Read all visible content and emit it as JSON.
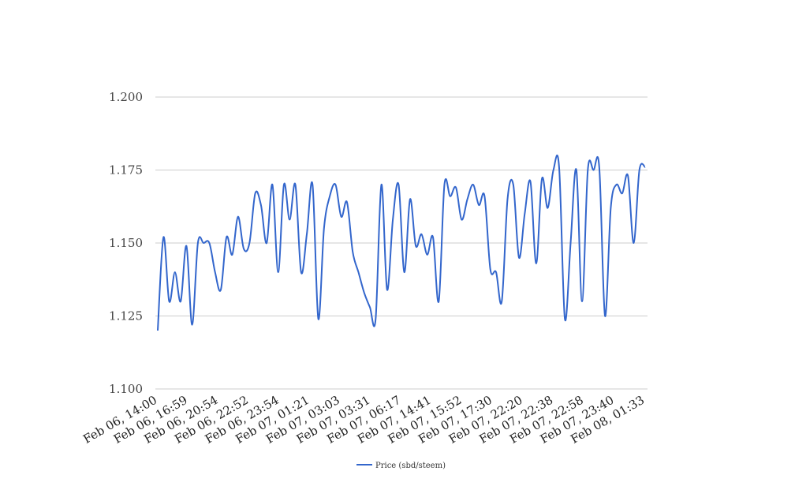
{
  "chart_data": {
    "type": "line",
    "x_tick_labels": [
      "Feb 06, 14:00",
      "Feb 06, 16:59",
      "Feb 06, 20:54",
      "Feb 06, 22:52",
      "Feb 06, 23:54",
      "Feb 07, 01:21",
      "Feb 07, 03:03",
      "Feb 07, 03:31",
      "Feb 07, 06:17",
      "Feb 07, 14:41",
      "Feb 07, 15:52",
      "Feb 07, 17:30",
      "Feb 07, 22:20",
      "Feb 07, 22:38",
      "Feb 07, 22:58",
      "Feb 07, 23:40",
      "Feb 08, 01:33"
    ],
    "y_tick_labels": [
      "1.200",
      "1.175",
      "1.150",
      "1.125",
      "1.100"
    ],
    "ylim": [
      1.1,
      1.2
    ],
    "grid": true,
    "legend_position": "bottom-center",
    "series": [
      {
        "name": "Price (sbd/steem)",
        "color": "#3366cc",
        "values": [
          1.12,
          1.152,
          1.13,
          1.14,
          1.13,
          1.149,
          1.122,
          1.15,
          1.15,
          1.15,
          1.14,
          1.134,
          1.152,
          1.146,
          1.159,
          1.148,
          1.15,
          1.167,
          1.163,
          1.15,
          1.17,
          1.14,
          1.17,
          1.158,
          1.17,
          1.14,
          1.153,
          1.17,
          1.124,
          1.155,
          1.166,
          1.17,
          1.159,
          1.164,
          1.147,
          1.14,
          1.133,
          1.128,
          1.124,
          1.17,
          1.134,
          1.158,
          1.17,
          1.14,
          1.165,
          1.149,
          1.153,
          1.146,
          1.152,
          1.13,
          1.17,
          1.166,
          1.169,
          1.158,
          1.165,
          1.17,
          1.163,
          1.166,
          1.141,
          1.14,
          1.13,
          1.165,
          1.17,
          1.145,
          1.16,
          1.171,
          1.143,
          1.172,
          1.162,
          1.175,
          1.176,
          1.124,
          1.15,
          1.175,
          1.13,
          1.175,
          1.175,
          1.176,
          1.125,
          1.162,
          1.17,
          1.167,
          1.173,
          1.15,
          1.175,
          1.176
        ]
      }
    ]
  }
}
